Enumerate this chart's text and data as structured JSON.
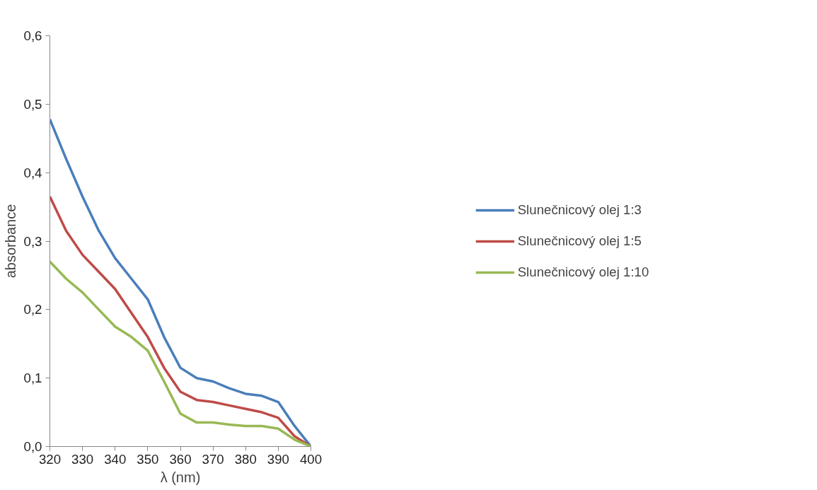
{
  "chart_data": {
    "type": "line",
    "xlabel": "λ (nm)",
    "ylabel": "absorbance",
    "x": [
      320,
      325,
      330,
      335,
      340,
      345,
      350,
      355,
      360,
      365,
      370,
      375,
      380,
      385,
      390,
      395,
      400
    ],
    "series": [
      {
        "name": "Slunečnicový olej 1:3",
        "color": "#4a7ebb",
        "values": [
          0.478,
          0.42,
          0.365,
          0.315,
          0.275,
          0.245,
          0.215,
          0.16,
          0.115,
          0.1,
          0.095,
          0.085,
          0.077,
          0.074,
          0.065,
          0.03,
          0
        ]
      },
      {
        "name": "Slunečnicový olej 1:5",
        "color": "#be4b48",
        "values": [
          0.365,
          0.315,
          0.28,
          0.255,
          0.23,
          0.195,
          0.16,
          0.115,
          0.08,
          0.068,
          0.065,
          0.06,
          0.055,
          0.05,
          0.042,
          0.015,
          0
        ]
      },
      {
        "name": "Slunečnicový olej 1:10",
        "color": "#98b954",
        "values": [
          0.27,
          0.245,
          0.225,
          0.2,
          0.175,
          0.16,
          0.14,
          0.095,
          0.048,
          0.035,
          0.035,
          0.032,
          0.03,
          0.03,
          0.026,
          0.01,
          0
        ]
      }
    ],
    "xlim": [
      320,
      400
    ],
    "xticks": [
      320,
      330,
      340,
      350,
      360,
      370,
      380,
      390,
      400
    ],
    "ylim": [
      0,
      0.6
    ],
    "yticks": [
      {
        "value": 0,
        "label": "0,0"
      },
      {
        "value": 0.1,
        "label": "0,1"
      },
      {
        "value": 0.2,
        "label": "0,2"
      },
      {
        "value": 0.3,
        "label": "0,3"
      },
      {
        "value": 0.4,
        "label": "0,4"
      },
      {
        "value": 0.5,
        "label": "0,5"
      },
      {
        "value": 0.6,
        "label": "0,6"
      }
    ],
    "grid": false,
    "legend": "right",
    "marker": "none",
    "line_style": "solid"
  }
}
